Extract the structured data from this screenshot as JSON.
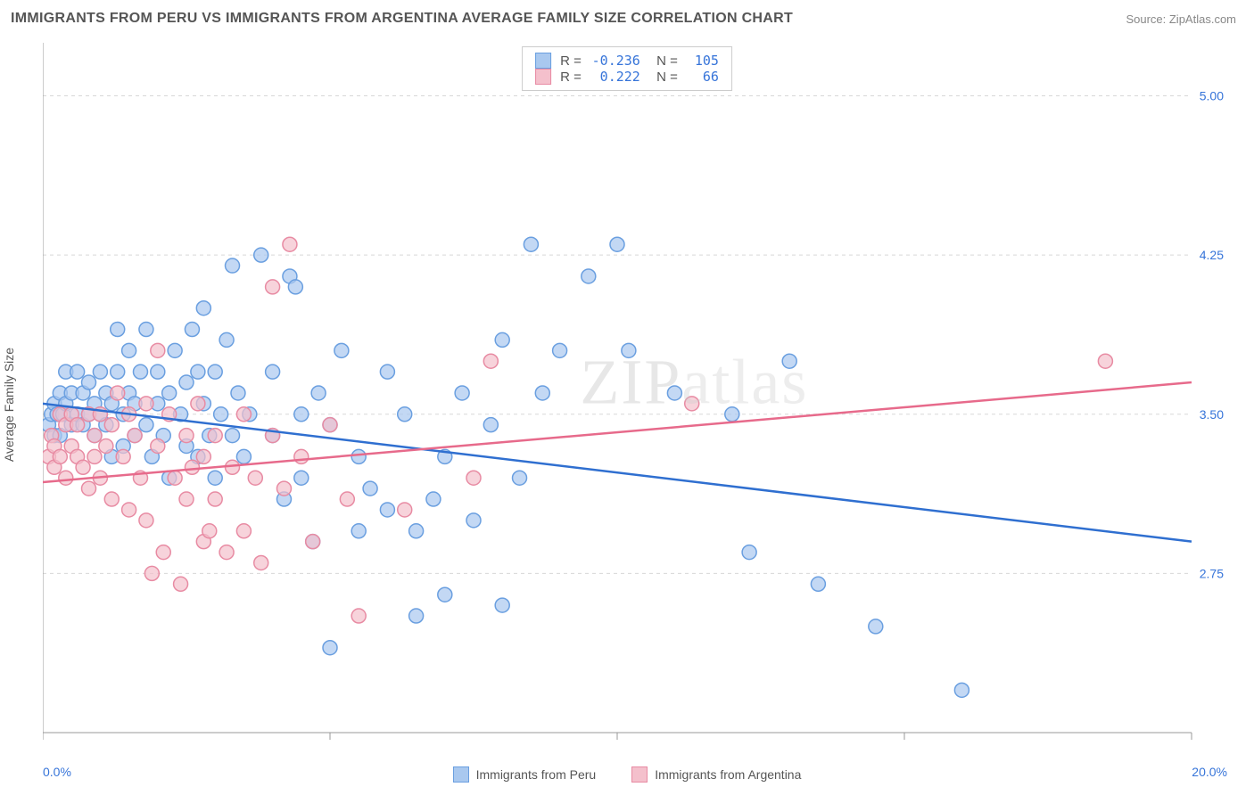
{
  "title": "IMMIGRANTS FROM PERU VS IMMIGRANTS FROM ARGENTINA AVERAGE FAMILY SIZE CORRELATION CHART",
  "source": "Source: ZipAtlas.com",
  "ylabel": "Average Family Size",
  "watermark": "ZIPatlas",
  "xaxis": {
    "min_label": "0.0%",
    "max_label": "20.0%",
    "xlim": [
      0,
      20
    ],
    "tick_step": 5
  },
  "yaxis": {
    "ylim": [
      2.0,
      5.25
    ],
    "ticks": [
      2.75,
      3.5,
      4.25,
      5.0
    ],
    "tick_labels": [
      "2.75",
      "3.50",
      "4.25",
      "5.00"
    ],
    "label_color": "#3674d9"
  },
  "grid_color": "#d8d8d8",
  "axis_line_color": "#999999",
  "background_color": "#ffffff",
  "series": [
    {
      "name": "Immigrants from Peru",
      "color_fill": "#a9c8ef",
      "color_stroke": "#6a9fe0",
      "line_color": "#2f6fd0",
      "R": "-0.236",
      "N": "105",
      "regression": {
        "x1": 0,
        "y1": 3.55,
        "x2": 20,
        "y2": 2.9
      },
      "points": [
        [
          0.1,
          3.45
        ],
        [
          0.15,
          3.5
        ],
        [
          0.2,
          3.4
        ],
        [
          0.2,
          3.55
        ],
        [
          0.25,
          3.5
        ],
        [
          0.3,
          3.6
        ],
        [
          0.3,
          3.4
        ],
        [
          0.35,
          3.5
        ],
        [
          0.4,
          3.55
        ],
        [
          0.4,
          3.7
        ],
        [
          0.5,
          3.45
        ],
        [
          0.5,
          3.6
        ],
        [
          0.6,
          3.5
        ],
        [
          0.6,
          3.7
        ],
        [
          0.7,
          3.45
        ],
        [
          0.7,
          3.6
        ],
        [
          0.8,
          3.5
        ],
        [
          0.8,
          3.65
        ],
        [
          0.9,
          3.4
        ],
        [
          0.9,
          3.55
        ],
        [
          1.0,
          3.7
        ],
        [
          1.0,
          3.5
        ],
        [
          1.1,
          3.45
        ],
        [
          1.1,
          3.6
        ],
        [
          1.2,
          3.3
        ],
        [
          1.2,
          3.55
        ],
        [
          1.3,
          3.7
        ],
        [
          1.4,
          3.5
        ],
        [
          1.4,
          3.35
        ],
        [
          1.5,
          3.6
        ],
        [
          1.5,
          3.8
        ],
        [
          1.6,
          3.4
        ],
        [
          1.6,
          3.55
        ],
        [
          1.7,
          3.7
        ],
        [
          1.8,
          3.45
        ],
        [
          1.8,
          3.9
        ],
        [
          1.9,
          3.3
        ],
        [
          2.0,
          3.55
        ],
        [
          2.0,
          3.7
        ],
        [
          2.1,
          3.4
        ],
        [
          2.2,
          3.6
        ],
        [
          2.2,
          3.2
        ],
        [
          2.3,
          3.8
        ],
        [
          2.4,
          3.5
        ],
        [
          2.5,
          3.35
        ],
        [
          2.5,
          3.65
        ],
        [
          2.6,
          3.9
        ],
        [
          2.7,
          3.3
        ],
        [
          2.8,
          3.55
        ],
        [
          2.8,
          4.0
        ],
        [
          2.9,
          3.4
        ],
        [
          3.0,
          3.7
        ],
        [
          3.0,
          3.2
        ],
        [
          3.1,
          3.5
        ],
        [
          3.2,
          3.85
        ],
        [
          3.3,
          4.2
        ],
        [
          3.3,
          3.4
        ],
        [
          3.4,
          3.6
        ],
        [
          3.5,
          3.3
        ],
        [
          3.6,
          3.5
        ],
        [
          3.8,
          4.25
        ],
        [
          4.0,
          3.7
        ],
        [
          4.0,
          3.4
        ],
        [
          4.2,
          3.1
        ],
        [
          4.3,
          4.15
        ],
        [
          4.4,
          4.1
        ],
        [
          4.5,
          3.5
        ],
        [
          4.5,
          3.2
        ],
        [
          4.7,
          2.9
        ],
        [
          4.8,
          3.6
        ],
        [
          5.0,
          3.45
        ],
        [
          5.0,
          2.4
        ],
        [
          5.2,
          3.8
        ],
        [
          5.5,
          3.3
        ],
        [
          5.5,
          2.95
        ],
        [
          5.7,
          3.15
        ],
        [
          6.0,
          3.7
        ],
        [
          6.0,
          3.05
        ],
        [
          6.3,
          3.5
        ],
        [
          6.5,
          2.95
        ],
        [
          6.5,
          2.55
        ],
        [
          6.8,
          3.1
        ],
        [
          7.0,
          3.3
        ],
        [
          7.0,
          2.65
        ],
        [
          7.3,
          3.6
        ],
        [
          7.5,
          3.0
        ],
        [
          7.8,
          3.45
        ],
        [
          8.0,
          3.85
        ],
        [
          8.0,
          2.6
        ],
        [
          8.3,
          3.2
        ],
        [
          8.5,
          4.3
        ],
        [
          8.7,
          3.6
        ],
        [
          9.0,
          3.8
        ],
        [
          9.5,
          4.15
        ],
        [
          10.0,
          4.3
        ],
        [
          10.2,
          3.8
        ],
        [
          11.0,
          3.6
        ],
        [
          12.0,
          3.5
        ],
        [
          12.3,
          2.85
        ],
        [
          13.0,
          3.75
        ],
        [
          13.5,
          2.7
        ],
        [
          14.5,
          2.5
        ],
        [
          16.0,
          2.2
        ],
        [
          1.3,
          3.9
        ],
        [
          2.7,
          3.7
        ]
      ]
    },
    {
      "name": "Immigrants from Argentina",
      "color_fill": "#f4c0cc",
      "color_stroke": "#e88ba3",
      "line_color": "#e76a8b",
      "R": "0.222",
      "N": "66",
      "regression": {
        "x1": 0,
        "y1": 3.18,
        "x2": 20,
        "y2": 3.65
      },
      "points": [
        [
          0.1,
          3.3
        ],
        [
          0.15,
          3.4
        ],
        [
          0.2,
          3.35
        ],
        [
          0.2,
          3.25
        ],
        [
          0.3,
          3.5
        ],
        [
          0.3,
          3.3
        ],
        [
          0.4,
          3.45
        ],
        [
          0.4,
          3.2
        ],
        [
          0.5,
          3.35
        ],
        [
          0.5,
          3.5
        ],
        [
          0.6,
          3.3
        ],
        [
          0.6,
          3.45
        ],
        [
          0.7,
          3.25
        ],
        [
          0.8,
          3.5
        ],
        [
          0.8,
          3.15
        ],
        [
          0.9,
          3.4
        ],
        [
          0.9,
          3.3
        ],
        [
          1.0,
          3.5
        ],
        [
          1.0,
          3.2
        ],
        [
          1.1,
          3.35
        ],
        [
          1.2,
          3.45
        ],
        [
          1.2,
          3.1
        ],
        [
          1.3,
          3.6
        ],
        [
          1.4,
          3.3
        ],
        [
          1.5,
          3.5
        ],
        [
          1.5,
          3.05
        ],
        [
          1.6,
          3.4
        ],
        [
          1.7,
          3.2
        ],
        [
          1.8,
          3.55
        ],
        [
          1.8,
          3.0
        ],
        [
          1.9,
          2.75
        ],
        [
          2.0,
          3.35
        ],
        [
          2.0,
          3.8
        ],
        [
          2.1,
          2.85
        ],
        [
          2.2,
          3.5
        ],
        [
          2.3,
          3.2
        ],
        [
          2.4,
          2.7
        ],
        [
          2.5,
          3.4
        ],
        [
          2.5,
          3.1
        ],
        [
          2.6,
          3.25
        ],
        [
          2.7,
          3.55
        ],
        [
          2.8,
          2.9
        ],
        [
          2.8,
          3.3
        ],
        [
          2.9,
          2.95
        ],
        [
          3.0,
          3.4
        ],
        [
          3.0,
          3.1
        ],
        [
          3.2,
          2.85
        ],
        [
          3.3,
          3.25
        ],
        [
          3.5,
          3.5
        ],
        [
          3.5,
          2.95
        ],
        [
          3.7,
          3.2
        ],
        [
          3.8,
          2.8
        ],
        [
          4.0,
          3.4
        ],
        [
          4.0,
          4.1
        ],
        [
          4.2,
          3.15
        ],
        [
          4.3,
          4.3
        ],
        [
          4.5,
          3.3
        ],
        [
          4.7,
          2.9
        ],
        [
          5.0,
          3.45
        ],
        [
          5.3,
          3.1
        ],
        [
          5.5,
          2.55
        ],
        [
          6.3,
          3.05
        ],
        [
          7.5,
          3.2
        ],
        [
          7.8,
          3.75
        ],
        [
          11.3,
          3.55
        ],
        [
          18.5,
          3.75
        ]
      ]
    }
  ]
}
